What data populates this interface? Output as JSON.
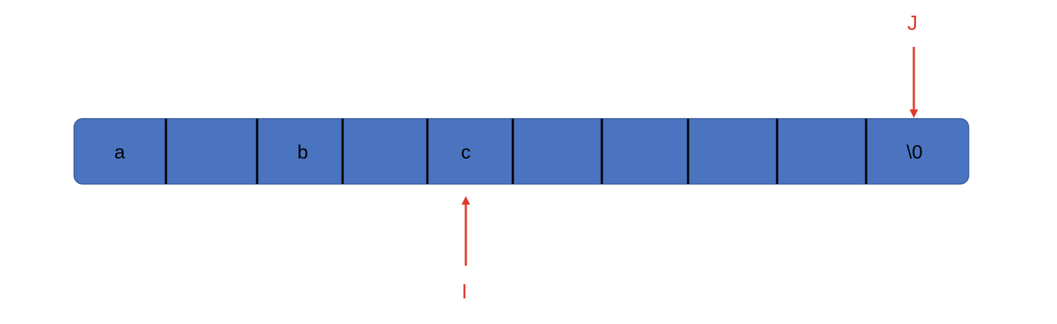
{
  "diagram": {
    "title": "",
    "cells": [
      "a",
      "",
      "b",
      "",
      "c",
      "",
      "",
      "",
      "",
      "\\0"
    ],
    "pointers": {
      "j": {
        "label": "J",
        "target_index": 9,
        "direction": "down"
      },
      "i": {
        "label": "I",
        "target_index": 4,
        "direction": "up"
      }
    }
  },
  "colors": {
    "cell_fill": "#4a73c0",
    "cell_border": "#3a5c9c",
    "divider": "#000000",
    "pointer": "#e03a2a"
  }
}
